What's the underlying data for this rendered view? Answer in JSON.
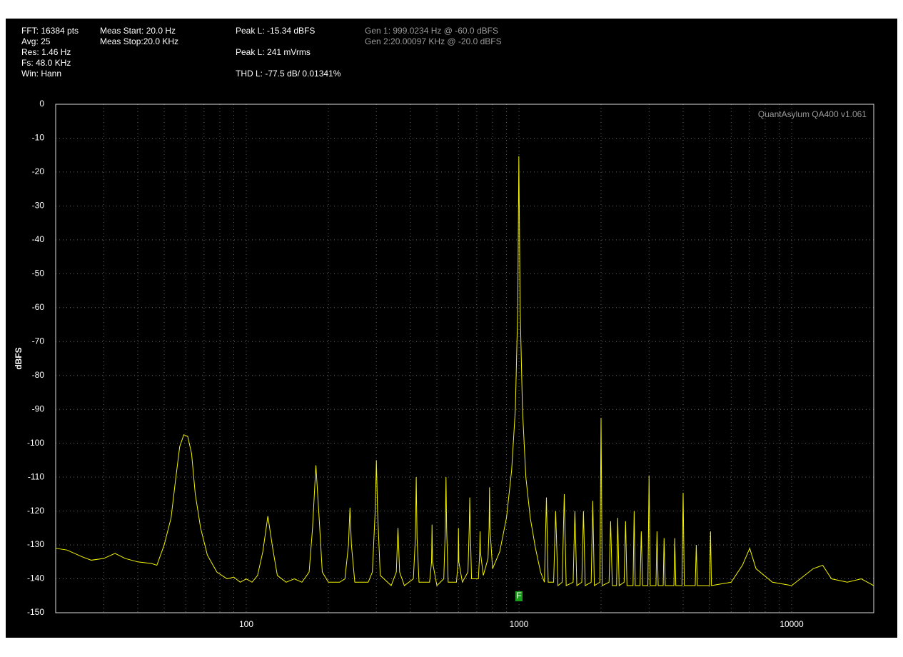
{
  "header": {
    "settings": [
      "FFT: 16384 pts",
      "Avg: 25",
      "Res: 1.46 Hz",
      "Fs: 48.0 KHz",
      "Win: Hann"
    ],
    "measure": [
      "Meas Start: 20.0 Hz",
      "Meas Stop:20.0 KHz"
    ],
    "readouts": [
      "Peak L: -15.34 dBFS",
      "Peak L: 241 mVrms",
      "THD L: -77.5 dB/ 0.01341%"
    ],
    "generators": [
      "Gen 1: 999.0234 Hz @ -60.0  dBFS",
      "Gen 2:20.00097 KHz @ -20.0  dBFS"
    ]
  },
  "chart_data": {
    "type": "line",
    "watermark": "QuantAsylum QA400 v1.061",
    "y_label": "dBFS",
    "color": "#f5f500",
    "log_x": true,
    "grid": true,
    "xlim": [
      20,
      20000
    ],
    "xticks": [
      100,
      1000,
      10000
    ],
    "x_minor_ticks": [
      30,
      40,
      50,
      60,
      70,
      80,
      90,
      200,
      300,
      400,
      500,
      600,
      700,
      800,
      900,
      2000,
      3000,
      4000,
      5000,
      6000,
      7000,
      8000,
      9000
    ],
    "ylim": [
      -150,
      0
    ],
    "yticks": [
      0,
      -10,
      -20,
      -30,
      -40,
      -50,
      -60,
      -70,
      -80,
      -90,
      -100,
      -110,
      -120,
      -130,
      -140,
      -150
    ],
    "marker": {
      "label": "F",
      "x": 1000
    },
    "x": [
      20,
      22,
      25,
      27,
      30,
      33,
      36,
      40,
      45,
      47,
      50,
      53,
      55,
      57,
      59,
      61,
      63,
      65,
      68,
      72,
      78,
      85,
      90,
      95,
      100,
      105,
      110,
      115,
      120,
      125,
      130,
      140,
      150,
      160,
      170,
      175,
      180,
      185,
      190,
      200,
      220,
      230,
      237,
      240,
      243,
      250,
      280,
      290,
      297,
      300,
      303,
      310,
      340,
      355,
      360,
      365,
      380,
      410,
      417,
      420,
      423,
      430,
      470,
      478,
      480,
      482,
      500,
      530,
      537,
      540,
      543,
      550,
      590,
      598,
      600,
      602,
      620,
      650,
      657,
      660,
      663,
      670,
      710,
      718,
      720,
      722,
      740,
      770,
      777,
      780,
      783,
      800,
      850,
      900,
      940,
      970,
      990,
      999,
      1010,
      1030,
      1060,
      1100,
      1150,
      1200,
      1240,
      1261,
      1280,
      1340,
      1363,
      1390,
      1440,
      1466,
      1490,
      1580,
      1604,
      1630,
      1700,
      1724,
      1750,
      1840,
      1865,
      1890,
      1980,
      2000,
      2020,
      2140,
      2168,
      2200,
      2280,
      2302,
      2330,
      2430,
      2460,
      2490,
      2620,
      2645,
      2670,
      2780,
      2809,
      2840,
      2970,
      3000,
      3030,
      3180,
      3208,
      3240,
      3380,
      3405,
      3440,
      3700,
      3727,
      3760,
      3960,
      4000,
      4040,
      4430,
      4469,
      4510,
      5000,
      5040,
      5080,
      6000,
      6600,
      7018,
      7400,
      8500,
      10000,
      12000,
      13000,
      14000,
      16000,
      18000,
      20000
    ],
    "values": [
      -131,
      -131.5,
      -133.5,
      -134.5,
      -134,
      -132.5,
      -134,
      -135,
      -135.5,
      -136,
      -130,
      -122,
      -111,
      -101,
      -97.5,
      -98,
      -103,
      -115,
      -125,
      -133,
      -138,
      -140,
      -139.5,
      -141,
      -140,
      -141,
      -139,
      -132,
      -121.5,
      -131,
      -139,
      -141,
      -140,
      -141,
      -138,
      -125,
      -106.5,
      -122,
      -138,
      -141,
      -141,
      -140,
      -130,
      -119,
      -130,
      -141,
      -141,
      -138,
      -120,
      -105,
      -120,
      -139,
      -142,
      -138,
      -125,
      -138,
      -142,
      -140,
      -128,
      -110,
      -128,
      -141,
      -141,
      -135,
      -124,
      -135,
      -142,
      -140,
      -125,
      -110,
      -125,
      -141,
      -141,
      -135,
      -125,
      -135,
      -141,
      -138,
      -125,
      -116,
      -125,
      -140,
      -140,
      -132,
      -126,
      -132,
      -139,
      -134,
      -125,
      -113,
      -125,
      -137,
      -132,
      -122,
      -108,
      -90,
      -60,
      -15.34,
      -60,
      -90,
      -110,
      -122,
      -131,
      -138,
      -141,
      -116,
      -141,
      -141,
      -120,
      -142,
      -141,
      -115,
      -142,
      -141,
      -120,
      -142,
      -141,
      -120,
      -142,
      -141,
      -117,
      -142,
      -141,
      -92.5,
      -142,
      -141,
      -123,
      -142,
      -142,
      -122,
      -142,
      -141,
      -123,
      -142,
      -142,
      -120,
      -142,
      -142,
      -126,
      -142,
      -142,
      -109.5,
      -142,
      -142,
      -126,
      -142,
      -142,
      -128,
      -142,
      -142,
      -128,
      -142,
      -142,
      -114.6,
      -142,
      -142,
      -130,
      -142,
      -142,
      -126,
      -142,
      -141,
      -136,
      -131,
      -137,
      -141,
      -142,
      -137,
      -136,
      -140,
      -141,
      -140,
      -142
    ]
  }
}
